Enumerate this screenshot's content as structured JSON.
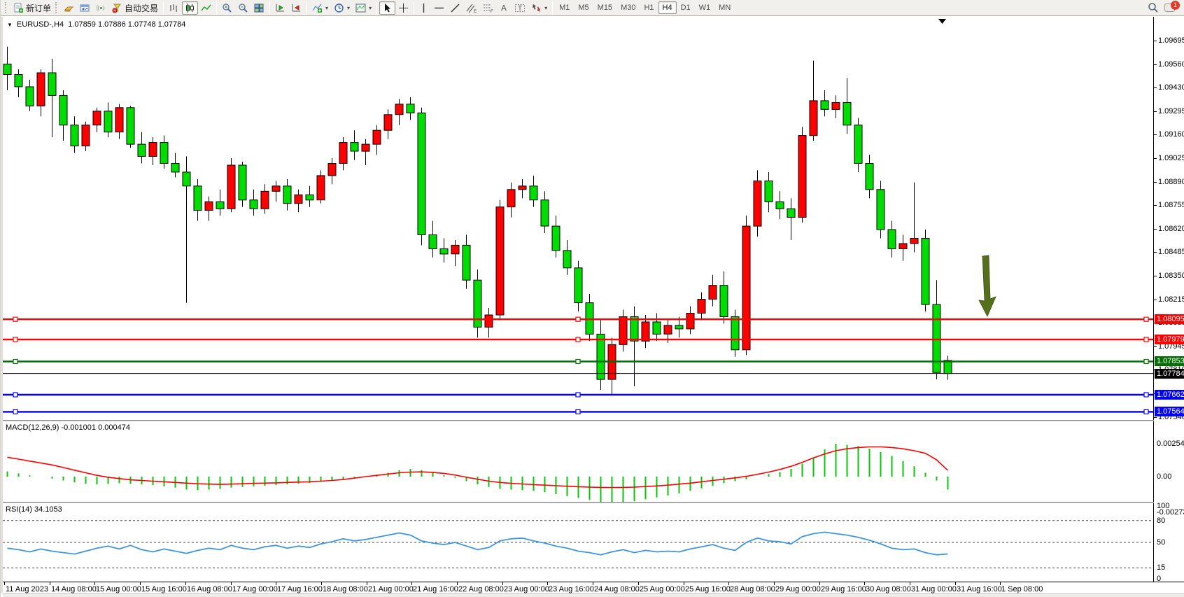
{
  "toolbar": {
    "new_order": "新订单",
    "auto_trading": "自动交易",
    "timeframes": [
      "M1",
      "M5",
      "M15",
      "M30",
      "H1",
      "H4",
      "D1",
      "W1",
      "MN"
    ],
    "active_timeframe": "H4",
    "badge_count": "1",
    "icons": [
      "new-order-icon",
      "market-watch-icon",
      "profiles-icon",
      "signal-icon",
      "autotrade-icon",
      "bar-chart-icon",
      "candlestick-chart-icon",
      "line-chart-icon",
      "zoom-in-icon",
      "zoom-out-icon",
      "tile-windows-icon",
      "auto-scroll-icon",
      "chart-shift-icon",
      "indicators-icon",
      "periods-icon",
      "templates-icon",
      "cursor-icon",
      "crosshair-icon",
      "vertical-line-icon",
      "horizontal-line-icon",
      "trendline-icon",
      "equidistant-channel-icon",
      "fibonacci-icon",
      "text-icon",
      "text-label-icon",
      "arrows-icon",
      "search-icon",
      "chat-icon"
    ]
  },
  "chart": {
    "title_symbol": "EURUSD-,H4",
    "title_quotes": "1.07859 1.07886 1.07748 1.07784"
  },
  "chart_data": {
    "type": "candlestick",
    "symbol": "EURUSD-",
    "timeframe": "H4",
    "title": "EURUSD-,H4 1.07859 1.07886 1.07748 1.07784",
    "color_convention": "red body = bullish, green body = bearish (CN convention), black wicks/outline",
    "colors": {
      "bull": "#FF0000",
      "bear": "#00DD00",
      "macd_hist": "#00CC00",
      "macd_signal": "#FF0000",
      "rsi_line": "#3E96E0",
      "arrow": "#55701C"
    },
    "candles_ohlc": [
      [
        1.0956,
        1.0966,
        1.0941,
        1.095
      ],
      [
        1.095,
        1.0953,
        1.0937,
        1.0943
      ],
      [
        1.0943,
        1.0947,
        1.0929,
        1.0932
      ],
      [
        1.0932,
        1.0953,
        1.0926,
        1.0951
      ],
      [
        1.0951,
        1.0959,
        1.0914,
        1.0938
      ],
      [
        1.0938,
        1.0941,
        1.0912,
        1.0921
      ],
      [
        1.0921,
        1.0926,
        1.0905,
        1.0909
      ],
      [
        1.0909,
        1.0923,
        1.0906,
        1.0921
      ],
      [
        1.0921,
        1.0931,
        1.0917,
        1.0929
      ],
      [
        1.0929,
        1.0934,
        1.0914,
        1.0917
      ],
      [
        1.0917,
        1.0933,
        1.0913,
        1.0931
      ],
      [
        1.0931,
        1.0932,
        1.0908,
        1.091
      ],
      [
        1.091,
        1.0917,
        1.0899,
        1.0903
      ],
      [
        1.0903,
        1.0914,
        1.0898,
        1.0911
      ],
      [
        1.0911,
        1.0915,
        1.0896,
        1.0899
      ],
      [
        1.0899,
        1.0905,
        1.0891,
        1.0894
      ],
      [
        1.0894,
        1.0903,
        1.0819,
        1.0886
      ],
      [
        1.0886,
        1.089,
        1.0866,
        1.0872
      ],
      [
        1.0872,
        1.088,
        1.0866,
        1.0877
      ],
      [
        1.0877,
        1.0884,
        1.0869,
        1.0873
      ],
      [
        1.0873,
        1.0902,
        1.0871,
        1.0898
      ],
      [
        1.0898,
        1.09,
        1.0874,
        1.0878
      ],
      [
        1.0878,
        1.0884,
        1.0869,
        1.0873
      ],
      [
        1.0873,
        1.0887,
        1.087,
        1.0883
      ],
      [
        1.0883,
        1.0889,
        1.0877,
        1.0886
      ],
      [
        1.0886,
        1.089,
        1.0872,
        1.0876
      ],
      [
        1.0876,
        1.0884,
        1.0871,
        1.0881
      ],
      [
        1.0881,
        1.0886,
        1.0874,
        1.0878
      ],
      [
        1.0878,
        1.0895,
        1.0876,
        1.0892
      ],
      [
        1.0892,
        1.0902,
        1.0887,
        1.0899
      ],
      [
        1.0899,
        1.0914,
        1.0895,
        1.0911
      ],
      [
        1.0911,
        1.0918,
        1.0901,
        1.0906
      ],
      [
        1.0906,
        1.0913,
        1.0898,
        1.091
      ],
      [
        1.091,
        1.0921,
        1.0904,
        1.0918
      ],
      [
        1.0918,
        1.093,
        1.0913,
        1.0927
      ],
      [
        1.0927,
        1.0936,
        1.0921,
        1.0933
      ],
      [
        1.0933,
        1.0937,
        1.0924,
        1.0928
      ],
      [
        1.0928,
        1.0931,
        1.0852,
        1.0858
      ],
      [
        1.0858,
        1.0866,
        1.0845,
        1.085
      ],
      [
        1.085,
        1.0856,
        1.0842,
        1.0847
      ],
      [
        1.0847,
        1.0855,
        1.084,
        1.0852
      ],
      [
        1.0852,
        1.0858,
        1.0827,
        1.0832
      ],
      [
        1.0832,
        1.0838,
        1.0799,
        1.0805
      ],
      [
        1.0805,
        1.0816,
        1.0799,
        1.0812
      ],
      [
        1.0812,
        1.0878,
        1.0809,
        1.0874
      ],
      [
        1.0874,
        1.0888,
        1.0868,
        1.0884
      ],
      [
        1.0884,
        1.089,
        1.0879,
        1.0886
      ],
      [
        1.0886,
        1.0892,
        1.0874,
        1.0878
      ],
      [
        1.0878,
        1.0883,
        1.0859,
        1.0863
      ],
      [
        1.0863,
        1.0869,
        1.0845,
        1.0849
      ],
      [
        1.0849,
        1.0855,
        1.0835,
        1.0839
      ],
      [
        1.0839,
        1.0843,
        1.0814,
        1.0819
      ],
      [
        1.0819,
        1.0824,
        1.0797,
        1.0801
      ],
      [
        1.0801,
        1.0809,
        1.0769,
        1.0775
      ],
      [
        1.0775,
        1.0799,
        1.0766,
        1.0795
      ],
      [
        1.0795,
        1.0815,
        1.0791,
        1.0811
      ],
      [
        1.0811,
        1.0817,
        1.0771,
        1.0797
      ],
      [
        1.0797,
        1.0812,
        1.0793,
        1.0808
      ],
      [
        1.0808,
        1.0813,
        1.0797,
        1.0801
      ],
      [
        1.0801,
        1.081,
        1.0796,
        1.0806
      ],
      [
        1.0806,
        1.0811,
        1.0799,
        1.0804
      ],
      [
        1.0804,
        1.0817,
        1.0801,
        1.0813
      ],
      [
        1.0813,
        1.0825,
        1.0809,
        1.0821
      ],
      [
        1.0821,
        1.0835,
        1.0817,
        1.0829
      ],
      [
        1.0829,
        1.0837,
        1.0807,
        1.0811
      ],
      [
        1.0811,
        1.0815,
        1.0788,
        1.0792
      ],
      [
        1.0792,
        1.0869,
        1.0789,
        1.0863
      ],
      [
        1.0863,
        1.0895,
        1.0857,
        1.0889
      ],
      [
        1.0889,
        1.0894,
        1.0871,
        1.0877
      ],
      [
        1.0877,
        1.0883,
        1.0867,
        1.0873
      ],
      [
        1.0873,
        1.0879,
        1.0855,
        1.0868
      ],
      [
        1.0868,
        1.092,
        1.0865,
        1.0915
      ],
      [
        1.0915,
        1.0958,
        1.0912,
        1.0935
      ],
      [
        1.0935,
        1.0941,
        1.0926,
        1.093
      ],
      [
        1.093,
        1.0938,
        1.0925,
        1.0934
      ],
      [
        1.0934,
        1.0948,
        1.0916,
        1.0921
      ],
      [
        1.0921,
        1.0925,
        1.0894,
        1.0899
      ],
      [
        1.0899,
        1.0904,
        1.0879,
        1.0884
      ],
      [
        1.0884,
        1.0889,
        1.0856,
        1.0861
      ],
      [
        1.0861,
        1.0866,
        1.0845,
        1.085
      ],
      [
        1.085,
        1.0858,
        1.0843,
        1.0853
      ],
      [
        1.0853,
        1.0888,
        1.0848,
        1.0856
      ],
      [
        1.0856,
        1.0861,
        1.0814,
        1.0818
      ],
      [
        1.0818,
        1.0832,
        1.0775,
        1.0779
      ],
      [
        1.07859,
        1.07886,
        1.07748,
        1.07784
      ]
    ],
    "hlines": [
      {
        "price": 1.08095,
        "label": "1.08095",
        "color": "#FF0000",
        "selected": true
      },
      {
        "price": 1.07979,
        "label": "1.07979",
        "color": "#FF0000",
        "selected": true
      },
      {
        "price": 1.07853,
        "label": "1.07853",
        "color": "#007000",
        "selected": true
      },
      {
        "price": 1.07784,
        "label": "1.07784",
        "color": "#000000",
        "selected": false,
        "role": "current-bid-line"
      },
      {
        "price": 1.07662,
        "label": "1.07662",
        "color": "#0000FF",
        "selected": true
      },
      {
        "price": 1.07564,
        "label": "1.07564",
        "color": "#0000FF",
        "selected": true
      }
    ],
    "current_price": "1.07784",
    "price_ticks": [
      "1.09695",
      "1.09560",
      "1.09430",
      "1.09295",
      "1.09160",
      "1.09025",
      "1.08890",
      "1.08755",
      "1.08620",
      "1.08485",
      "1.08350",
      "1.08215",
      "1.08080",
      "1.07945",
      "1.07810",
      "1.07675",
      "1.07540"
    ],
    "time_labels": [
      "11 Aug 2023",
      "14 Aug 08:00",
      "15 Aug 00:00",
      "15 Aug 16:00",
      "16 Aug 08:00",
      "17 Aug 00:00",
      "17 Aug 16:00",
      "18 Aug 08:00",
      "21 Aug 00:00",
      "21 Aug 16:00",
      "22 Aug 08:00",
      "23 Aug 00:00",
      "23 Aug 16:00",
      "24 Aug 08:00",
      "25 Aug 00:00",
      "25 Aug 16:00",
      "28 Aug 08:00",
      "29 Aug 00:00",
      "29 Aug 16:00",
      "30 Aug 08:00",
      "31 Aug 00:00",
      "31 Aug 16:00",
      "1 Sep 08:00"
    ],
    "annotation": {
      "type": "down-arrow",
      "color": "#55701C",
      "near_price": 1.0805,
      "near_time": "after 1 Sep 08:00"
    },
    "macd": {
      "label": "MACD(12,26,9) -0.001001 0.000474",
      "axis": [
        "0.002543",
        "0.00",
        "-0.002733"
      ],
      "histogram_x1e3": [
        0.4,
        0.25,
        0.1,
        0,
        -0.15,
        -0.3,
        -0.45,
        -0.55,
        -0.6,
        -0.55,
        -0.5,
        -0.55,
        -0.6,
        -0.65,
        -0.75,
        -0.85,
        -1,
        -1.05,
        -1,
        -0.95,
        -0.85,
        -0.8,
        -0.75,
        -0.7,
        -0.65,
        -0.6,
        -0.55,
        -0.5,
        -0.4,
        -0.3,
        -0.2,
        -0.1,
        0,
        0.15,
        0.3,
        0.5,
        0.6,
        0.5,
        0.3,
        0.1,
        -0.1,
        -0.35,
        -0.6,
        -0.8,
        -0.95,
        -1,
        -1.05,
        -1.1,
        -1.2,
        -1.35,
        -1.5,
        -1.65,
        -1.8,
        -1.95,
        -2.05,
        -2,
        -1.9,
        -1.75,
        -1.6,
        -1.45,
        -1.3,
        -1.1,
        -0.9,
        -0.7,
        -0.5,
        -0.35,
        -0.2,
        0,
        0.2,
        0.35,
        0.6,
        1,
        1.5,
        2.1,
        2.543,
        2.45,
        2.35,
        2.15,
        1.9,
        1.6,
        1.2,
        0.8,
        0.3,
        -0.3,
        -1.001
      ],
      "signal_x1e3": [
        1.5,
        1.35,
        1.2,
        1.05,
        0.9,
        0.7,
        0.5,
        0.3,
        0.1,
        -0.05,
        -0.15,
        -0.25,
        -0.3,
        -0.35,
        -0.4,
        -0.45,
        -0.5,
        -0.55,
        -0.58,
        -0.6,
        -0.58,
        -0.55,
        -0.52,
        -0.5,
        -0.48,
        -0.45,
        -0.42,
        -0.4,
        -0.35,
        -0.3,
        -0.22,
        -0.12,
        0,
        0.1,
        0.2,
        0.3,
        0.35,
        0.37,
        0.33,
        0.25,
        0.12,
        -0.05,
        -0.2,
        -0.35,
        -0.45,
        -0.52,
        -0.57,
        -0.62,
        -0.66,
        -0.7,
        -0.74,
        -0.78,
        -0.81,
        -0.83,
        -0.84,
        -0.83,
        -0.81,
        -0.77,
        -0.72,
        -0.66,
        -0.58,
        -0.5,
        -0.4,
        -0.3,
        -0.2,
        -0.1,
        0.02,
        0.18,
        0.35,
        0.55,
        0.8,
        1.1,
        1.45,
        1.75,
        2,
        2.15,
        2.25,
        2.3,
        2.3,
        2.25,
        2.15,
        2,
        1.8,
        1.3,
        0.474
      ]
    },
    "rsi": {
      "label": "RSI(14) 34.1053",
      "axis": [
        "100",
        "80",
        "50",
        "15",
        "0"
      ],
      "levels": [
        80,
        50,
        15
      ],
      "values": [
        42,
        40,
        37,
        41,
        38,
        36,
        34,
        38,
        42,
        45,
        41,
        46,
        40,
        37,
        41,
        38,
        35,
        39,
        42,
        40,
        46,
        42,
        40,
        44,
        46,
        42,
        45,
        43,
        48,
        51,
        55,
        52,
        54,
        57,
        60,
        63,
        60,
        52,
        49,
        47,
        50,
        45,
        40,
        43,
        52,
        55,
        56,
        52,
        49,
        45,
        42,
        38,
        36,
        33,
        37,
        40,
        36,
        39,
        37,
        38,
        37,
        41,
        44,
        47,
        42,
        39,
        50,
        56,
        52,
        51,
        48,
        58,
        62,
        64,
        62,
        60,
        57,
        53,
        48,
        42,
        40,
        41,
        36,
        33,
        34.1
      ]
    }
  }
}
